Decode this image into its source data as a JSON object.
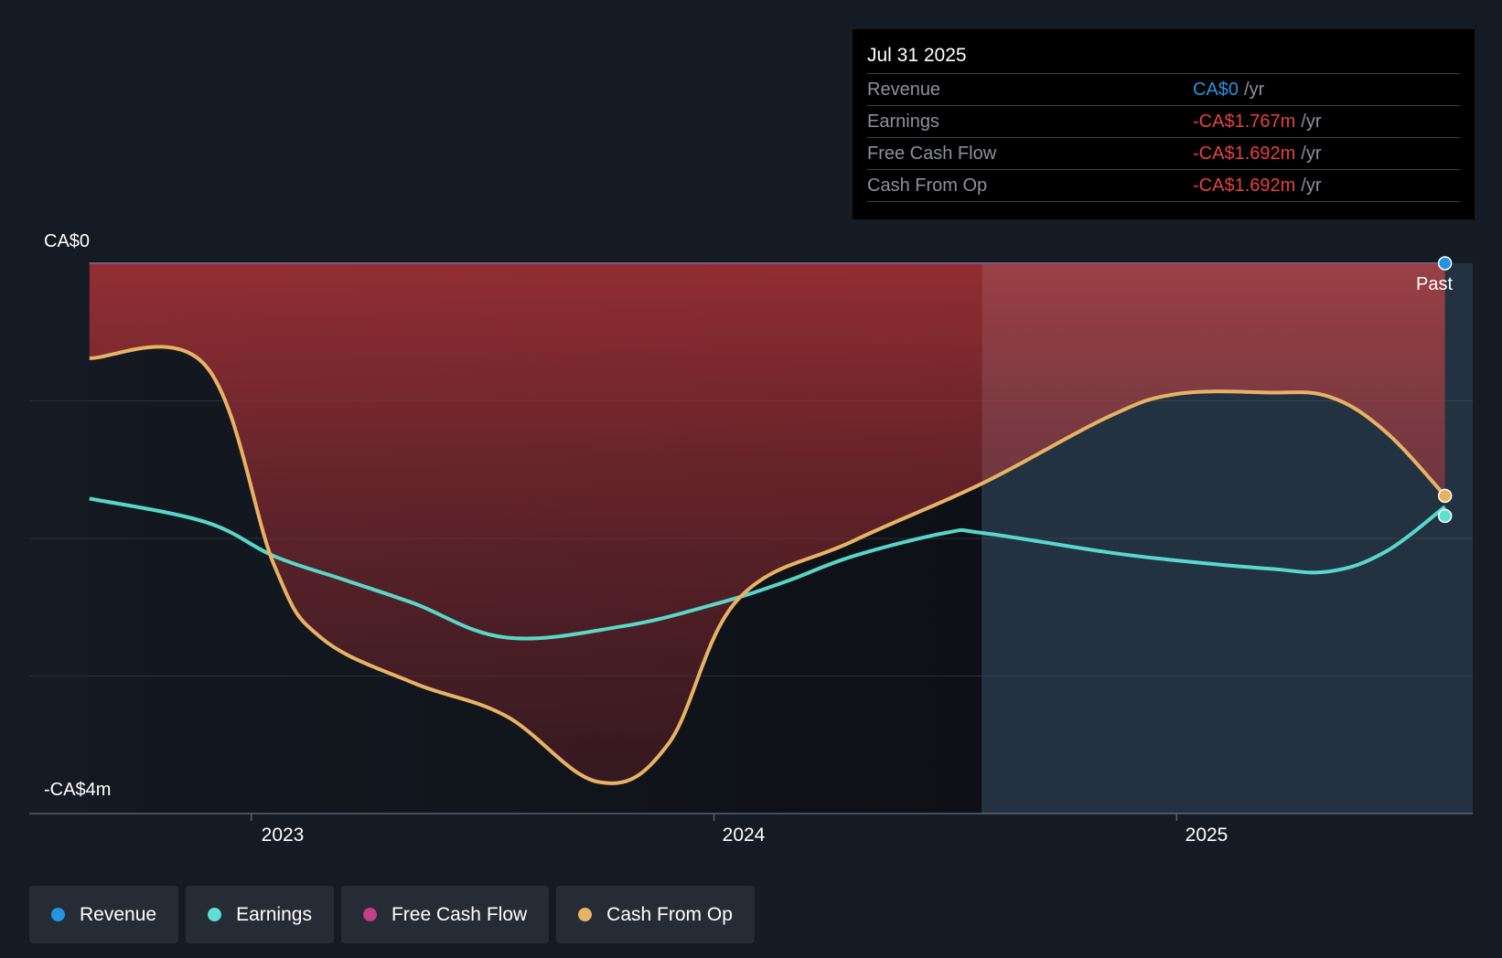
{
  "tooltip": {
    "date": "Jul 31 2025",
    "rows": [
      {
        "label": "Revenue",
        "value": "CA$0",
        "unit": "/yr",
        "color": "#2394df"
      },
      {
        "label": "Earnings",
        "value": "-CA$1.767m",
        "unit": "/yr",
        "color": "#e64141"
      },
      {
        "label": "Free Cash Flow",
        "value": "-CA$1.692m",
        "unit": "/yr",
        "color": "#e64141"
      },
      {
        "label": "Cash From Op",
        "value": "-CA$1.692m",
        "unit": "/yr",
        "color": "#e64141"
      }
    ]
  },
  "past_label": "Past",
  "legend": [
    {
      "label": "Revenue",
      "color": "#2394df"
    },
    {
      "label": "Earnings",
      "color": "#5ce0d2"
    },
    {
      "label": "Free Cash Flow",
      "color": "#c33e82"
    },
    {
      "label": "Cash From Op",
      "color": "#e8b265"
    }
  ],
  "chart_data": {
    "type": "line",
    "title": "",
    "y_tick_labels": [
      "CA$0",
      "-CA$4m"
    ],
    "x_tick_labels": [
      "2023",
      "2024",
      "2025"
    ],
    "x_ticks": [
      2023.0,
      2024.0,
      2025.0
    ],
    "ylim": [
      -4.0,
      0.0
    ],
    "xlim": [
      2022.52,
      2025.64
    ],
    "past_boundary": 2024.58,
    "series": [
      {
        "name": "Revenue",
        "color": "#2394df",
        "points": [
          [
            2022.65,
            0
          ],
          [
            2025.58,
            0
          ]
        ]
      },
      {
        "name": "Earnings",
        "color": "#5ce0d2",
        "points": [
          [
            2022.65,
            -1.71
          ],
          [
            2022.9,
            -1.88
          ],
          [
            2023.05,
            -2.13
          ],
          [
            2023.2,
            -2.3
          ],
          [
            2023.35,
            -2.47
          ],
          [
            2023.55,
            -2.72
          ],
          [
            2023.8,
            -2.64
          ],
          [
            2024.0,
            -2.48
          ],
          [
            2024.15,
            -2.32
          ],
          [
            2024.3,
            -2.13
          ],
          [
            2024.5,
            -1.96
          ],
          [
            2024.58,
            -1.96
          ],
          [
            2024.85,
            -2.1
          ],
          [
            2025.0,
            -2.16
          ],
          [
            2025.2,
            -2.22
          ],
          [
            2025.33,
            -2.24
          ],
          [
            2025.45,
            -2.1
          ],
          [
            2025.58,
            -1.77
          ]
        ]
      },
      {
        "name": "Free Cash Flow",
        "color": "#c33e82",
        "points": [
          [
            2022.65,
            -0.69
          ],
          [
            2022.9,
            -0.74
          ],
          [
            2023.05,
            -2.2
          ],
          [
            2023.15,
            -2.72
          ],
          [
            2023.35,
            -3.05
          ],
          [
            2023.55,
            -3.29
          ],
          [
            2023.75,
            -3.77
          ],
          [
            2023.9,
            -3.5
          ],
          [
            2024.05,
            -2.45
          ],
          [
            2024.3,
            -2.02
          ],
          [
            2024.58,
            -1.6
          ],
          [
            2024.85,
            -1.12
          ],
          [
            2025.0,
            -0.95
          ],
          [
            2025.2,
            -0.94
          ],
          [
            2025.33,
            -0.97
          ],
          [
            2025.45,
            -1.22
          ],
          [
            2025.58,
            -1.69
          ]
        ]
      },
      {
        "name": "Cash From Op",
        "color": "#e8b265",
        "points": [
          [
            2022.65,
            -0.69
          ],
          [
            2022.9,
            -0.74
          ],
          [
            2023.05,
            -2.2
          ],
          [
            2023.15,
            -2.72
          ],
          [
            2023.35,
            -3.05
          ],
          [
            2023.55,
            -3.29
          ],
          [
            2023.75,
            -3.77
          ],
          [
            2023.9,
            -3.5
          ],
          [
            2024.05,
            -2.45
          ],
          [
            2024.3,
            -2.02
          ],
          [
            2024.58,
            -1.6
          ],
          [
            2024.85,
            -1.12
          ],
          [
            2025.0,
            -0.95
          ],
          [
            2025.2,
            -0.94
          ],
          [
            2025.33,
            -0.97
          ],
          [
            2025.45,
            -1.22
          ],
          [
            2025.58,
            -1.69
          ]
        ]
      }
    ]
  }
}
